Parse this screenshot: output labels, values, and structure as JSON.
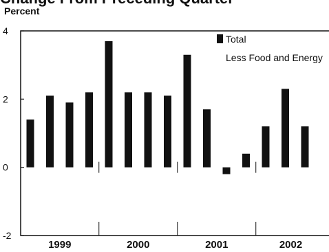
{
  "chart_data": {
    "type": "bar",
    "title": "Change From Preceding Quarter",
    "ylabel": "Percent",
    "xlabel": "",
    "ylim": [
      -2,
      4
    ],
    "yticks": [
      "-2",
      "0",
      "2",
      "4"
    ],
    "years": [
      "1999",
      "2000",
      "2001",
      "2002"
    ],
    "categories": [
      "1999 Q1",
      "1999 Q2",
      "1999 Q3",
      "1999 Q4",
      "2000 Q1",
      "2000 Q2",
      "2000 Q3",
      "2000 Q4",
      "2001 Q1",
      "2001 Q2",
      "2001 Q3",
      "2001 Q4",
      "2002 Q1",
      "2002 Q2",
      "2002 Q3"
    ],
    "series": [
      {
        "name": "Total",
        "color": "#111111",
        "values": [
          1.4,
          2.1,
          1.9,
          2.2,
          3.7,
          2.2,
          2.2,
          2.1,
          3.3,
          1.7,
          -0.2,
          0.4,
          1.2,
          2.3,
          1.2
        ]
      },
      {
        "name": "Less Food and Energy",
        "color": "#d8d8d8"
      }
    ],
    "grid": false,
    "legend": "top-right"
  }
}
